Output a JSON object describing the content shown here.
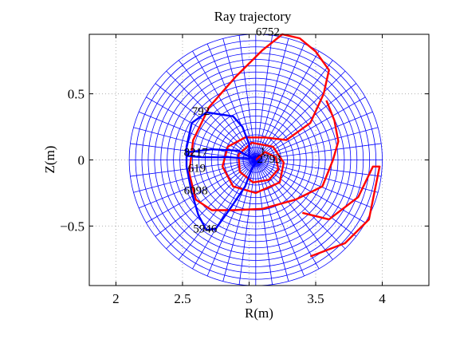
{
  "chart_data": {
    "type": "line",
    "title": "Ray trajectory",
    "xlabel": "R(m)",
    "ylabel": "Z(m)",
    "xlim": [
      1.8,
      4.35
    ],
    "ylim": [
      -0.95,
      0.95
    ],
    "x_ticks": [
      {
        "value": 2,
        "label": "2"
      },
      {
        "value": 2.5,
        "label": "2.5"
      },
      {
        "value": 3,
        "label": "3"
      },
      {
        "value": 3.5,
        "label": "3.5"
      },
      {
        "value": 4,
        "label": "4"
      }
    ],
    "y_ticks": [
      {
        "value": 0.5,
        "label": "0.5"
      },
      {
        "value": 0,
        "label": "0"
      },
      {
        "value": -0.5,
        "label": "−0.5"
      }
    ],
    "grid": true,
    "mesh": {
      "center_r": 3.05,
      "center_z": 0.0,
      "minor_radius": 0.95,
      "radial_surfaces": 20,
      "poloidal_spokes": 48,
      "color": "#0000ff"
    },
    "series": [
      {
        "color": "#ff0000",
        "points": [
          [
            3.05,
            0.0
          ],
          [
            3.12,
            0.06
          ],
          [
            3.2,
            0.02
          ],
          [
            3.22,
            -0.07
          ],
          [
            3.15,
            -0.15
          ],
          [
            3.03,
            -0.17
          ],
          [
            2.93,
            -0.09
          ],
          [
            2.92,
            0.04
          ],
          [
            3.02,
            0.13
          ],
          [
            3.18,
            0.1
          ],
          [
            3.26,
            -0.02
          ],
          [
            3.23,
            -0.17
          ],
          [
            3.05,
            -0.25
          ],
          [
            2.88,
            -0.2
          ],
          [
            2.8,
            -0.05
          ],
          [
            2.84,
            0.1
          ],
          [
            2.97,
            0.17
          ],
          [
            3.12,
            0.17
          ],
          [
            3.28,
            0.15
          ],
          [
            3.46,
            0.28
          ],
          [
            3.56,
            0.5
          ],
          [
            3.6,
            0.68
          ],
          [
            3.5,
            0.82
          ],
          [
            3.38,
            0.92
          ],
          [
            3.25,
            0.95
          ],
          [
            3.1,
            0.83
          ],
          [
            2.9,
            0.63
          ],
          [
            2.7,
            0.4
          ],
          [
            2.58,
            0.15
          ],
          [
            2.55,
            -0.1
          ],
          [
            2.6,
            -0.3
          ],
          [
            2.72,
            -0.38
          ],
          [
            2.88,
            -0.38
          ],
          [
            3.1,
            -0.37
          ],
          [
            3.35,
            -0.3
          ],
          [
            3.55,
            -0.2
          ],
          [
            3.63,
            0.0
          ],
          [
            3.67,
            0.14
          ],
          [
            3.64,
            0.3
          ],
          [
            3.58,
            0.45
          ]
        ]
      },
      {
        "color": "#ff0000",
        "points": [
          [
            3.46,
            -0.73
          ],
          [
            3.72,
            -0.63
          ],
          [
            3.9,
            -0.45
          ],
          [
            3.98,
            -0.05
          ],
          [
            3.93,
            -0.05
          ],
          [
            3.82,
            -0.28
          ],
          [
            3.6,
            -0.45
          ],
          [
            3.4,
            -0.4
          ]
        ]
      },
      {
        "color": "#0000ff",
        "points": [
          [
            3.05,
            0.0
          ],
          [
            2.92,
            0.07
          ],
          [
            2.72,
            0.08
          ],
          [
            2.55,
            0.06
          ],
          [
            2.54,
            0.03
          ],
          [
            2.65,
            0.02
          ],
          [
            2.85,
            0.02
          ],
          [
            3.0,
            0.01
          ],
          [
            3.0,
            0.12
          ],
          [
            2.95,
            0.25
          ],
          [
            2.88,
            0.33
          ],
          [
            2.68,
            0.36
          ],
          [
            2.57,
            0.28
          ],
          [
            2.53,
            0.1
          ],
          [
            2.53,
            -0.05
          ],
          [
            2.57,
            -0.25
          ],
          [
            2.62,
            -0.42
          ],
          [
            2.68,
            -0.53
          ],
          [
            2.75,
            -0.52
          ],
          [
            2.87,
            -0.35
          ],
          [
            2.97,
            -0.2
          ],
          [
            3.02,
            -0.07
          ],
          [
            3.05,
            -0.02
          ]
        ]
      }
    ],
    "annotations": [
      {
        "text": "6752",
        "r": 3.05,
        "z": 0.94
      },
      {
        "text": "792",
        "r": 2.57,
        "z": 0.34
      },
      {
        "text": "8217",
        "r": 2.51,
        "z": 0.03
      },
      {
        "text": "619",
        "r": 2.54,
        "z": -0.09
      },
      {
        "text": "6098",
        "r": 2.51,
        "z": -0.26
      },
      {
        "text": "5946",
        "r": 2.58,
        "z": -0.55
      },
      {
        "text": "1",
        "r": 3.08,
        "z": 0.04
      },
      {
        "text": "2793",
        "r": 3.06,
        "z": -0.02
      }
    ]
  }
}
